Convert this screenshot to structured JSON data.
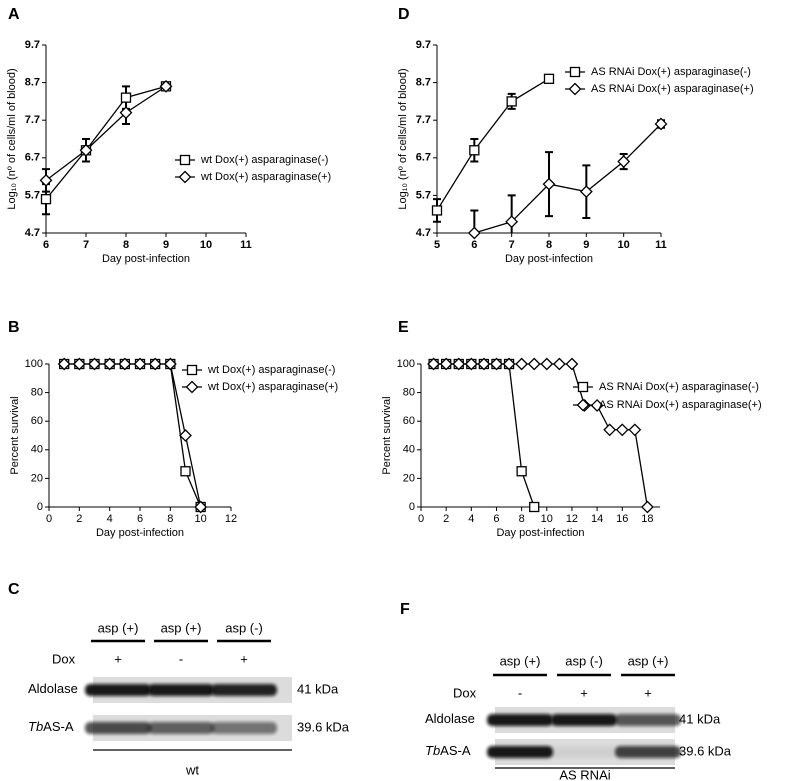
{
  "chart_data": [
    {
      "panel": "A",
      "type": "line",
      "xlabel": "Day post-infection",
      "ylabel": "Log₁₀ (nº of cells/ml of blood)",
      "xlim": [
        6,
        11
      ],
      "xticks": [
        6,
        7,
        8,
        9,
        10,
        11
      ],
      "ylim": [
        4.7,
        9.7
      ],
      "yticks": [
        4.7,
        5.7,
        6.7,
        7.7,
        8.7,
        9.7
      ],
      "series": [
        {
          "name": "wt Dox(+) asparaginase(-)",
          "color": "#000000",
          "marker": "square",
          "x": [
            6,
            7,
            8,
            9
          ],
          "values": [
            5.6,
            6.9,
            8.3,
            8.6
          ],
          "errors": [
            0.4,
            0.3,
            0.3,
            0.1
          ]
        },
        {
          "name": "wt Dox(+) asparaginase(+)",
          "color": "#000000",
          "marker": "diamond",
          "x": [
            6,
            7,
            8,
            9
          ],
          "values": [
            6.1,
            6.9,
            7.9,
            8.6
          ],
          "errors": [
            0.3,
            0.3,
            0.3,
            0.1
          ]
        }
      ]
    },
    {
      "panel": "D",
      "type": "line",
      "xlabel": "Day post-infection",
      "ylabel": "Log₁₀ (nº of cells/ml of blood)",
      "xlim": [
        5,
        11
      ],
      "xticks": [
        5,
        6,
        7,
        8,
        9,
        10,
        11
      ],
      "ylim": [
        4.7,
        9.7
      ],
      "yticks": [
        4.7,
        5.7,
        6.7,
        7.7,
        8.7,
        9.7
      ],
      "series": [
        {
          "name": "AS RNAi Dox(+) asparaginase(-)",
          "color": "#000000",
          "marker": "square",
          "x": [
            5,
            6,
            7,
            8
          ],
          "values": [
            5.3,
            6.9,
            8.2,
            8.8
          ],
          "errors": [
            0.3,
            0.3,
            0.2,
            0.05
          ]
        },
        {
          "name": "AS RNAi Dox(+) asparaginase(+)",
          "color": "#000000",
          "marker": "diamond",
          "x": [
            6,
            7,
            8,
            9,
            10,
            11
          ],
          "values": [
            4.7,
            5.0,
            6.0,
            5.8,
            6.6,
            7.6
          ],
          "errors": [
            0.6,
            0.7,
            0.85,
            0.7,
            0.2,
            0.1
          ]
        }
      ]
    },
    {
      "panel": "B",
      "type": "line",
      "xlabel": "Day post-infection",
      "ylabel": "Percent survival",
      "xlim": [
        0,
        12
      ],
      "xticks": [
        0,
        2,
        4,
        6,
        8,
        10,
        12
      ],
      "ylim": [
        0,
        100
      ],
      "yticks": [
        0,
        20,
        40,
        60,
        80,
        100
      ],
      "series": [
        {
          "name": "wt Dox(+) asparaginase(-)",
          "color": "#000000",
          "marker": "square",
          "x": [
            1,
            2,
            3,
            4,
            5,
            6,
            7,
            8,
            9,
            10
          ],
          "values": [
            100,
            100,
            100,
            100,
            100,
            100,
            100,
            100,
            25,
            0
          ]
        },
        {
          "name": "wt Dox(+) asparaginase(+)",
          "color": "#000000",
          "marker": "diamond",
          "x": [
            1,
            2,
            3,
            4,
            5,
            6,
            7,
            8,
            9,
            10
          ],
          "values": [
            100,
            100,
            100,
            100,
            100,
            100,
            100,
            100,
            50,
            0
          ]
        }
      ]
    },
    {
      "panel": "E",
      "type": "line",
      "xlabel": "Day post-infection",
      "ylabel": "Percent survival",
      "xlim": [
        0,
        19
      ],
      "xticks": [
        0,
        2,
        4,
        6,
        8,
        10,
        12,
        14,
        16,
        18
      ],
      "ylim": [
        0,
        100
      ],
      "yticks": [
        0,
        20,
        40,
        60,
        80,
        100
      ],
      "series": [
        {
          "name": "AS RNAi Dox(+) asparaginase(-)",
          "color": "#000000",
          "marker": "square",
          "x": [
            1,
            2,
            3,
            4,
            5,
            6,
            7,
            8,
            9
          ],
          "values": [
            100,
            100,
            100,
            100,
            100,
            100,
            100,
            25,
            0
          ]
        },
        {
          "name": "AS RNAi Dox(+) asparaginase(+)",
          "color": "#000000",
          "marker": "diamond",
          "x": [
            1,
            2,
            3,
            4,
            5,
            6,
            7,
            8,
            9,
            10,
            11,
            12,
            13,
            14,
            15,
            16,
            17,
            18
          ],
          "values": [
            100,
            100,
            100,
            100,
            100,
            100,
            100,
            100,
            100,
            100,
            100,
            100,
            71,
            71,
            54,
            54,
            54,
            0
          ]
        }
      ]
    }
  ],
  "blots": [
    {
      "panel": "C",
      "dox_label": "Dox",
      "lanes": [
        {
          "label": "asp (+)",
          "dox": "+"
        },
        {
          "label": "asp (+)",
          "dox": "-"
        },
        {
          "label": "asp (-)",
          "dox": "+"
        }
      ],
      "rows": [
        {
          "species": "",
          "protein": "Aldolase",
          "size": "41 kDa"
        },
        {
          "species": "Tb",
          "protein": "AS-A",
          "size": "39.6 kDa"
        }
      ],
      "sample": "wt"
    },
    {
      "panel": "F",
      "dox_label": "Dox",
      "lanes": [
        {
          "label": "asp (+)",
          "dox": "-"
        },
        {
          "label": "asp (-)",
          "dox": "+"
        },
        {
          "label": "asp (+)",
          "dox": "+"
        }
      ],
      "rows": [
        {
          "species": "",
          "protein": "Aldolase",
          "size": "41 kDa"
        },
        {
          "species": "Tb",
          "protein": "AS-A",
          "size": "39.6 kDa"
        }
      ],
      "sample": "AS RNAi"
    }
  ]
}
